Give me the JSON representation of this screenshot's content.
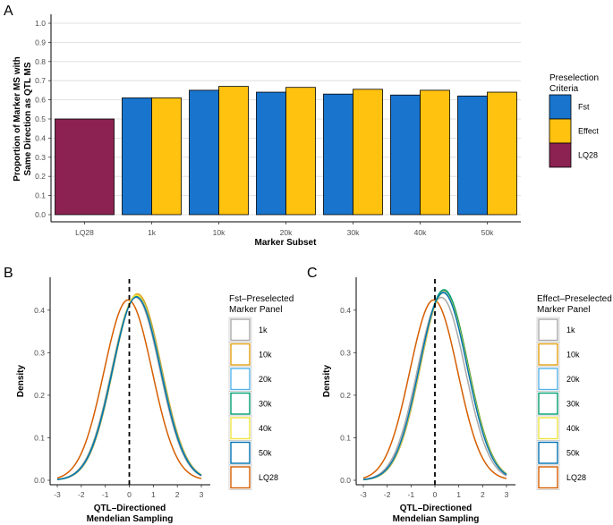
{
  "chart_data": [
    {
      "panel": "A",
      "type": "bar",
      "xlabel": "Marker Subset",
      "ylabel_line1": "Proportion of Marker MS with",
      "ylabel_line2": "Same Direction as QTL MS",
      "ylim": [
        0,
        1.0
      ],
      "yticks": [
        "0.0",
        "0.1",
        "0.2",
        "0.3",
        "0.4",
        "0.5",
        "0.6",
        "0.7",
        "0.8",
        "0.9",
        "1.0"
      ],
      "categories": [
        "LQ28",
        "1k",
        "10k",
        "20k",
        "30k",
        "40k",
        "50k"
      ],
      "series": [
        {
          "name": "Fst",
          "color": "#1874cd",
          "values": [
            null,
            0.61,
            0.65,
            0.64,
            0.63,
            0.625,
            0.62
          ]
        },
        {
          "name": "Effect",
          "color": "#ffc20e",
          "values": [
            null,
            0.61,
            0.67,
            0.665,
            0.655,
            0.65,
            0.64
          ]
        },
        {
          "name": "LQ28",
          "color": "#8b2252",
          "values": [
            0.5,
            null,
            null,
            null,
            null,
            null,
            null
          ]
        }
      ],
      "legend_title_line1": "Preselection",
      "legend_title_line2": "Criteria",
      "legend_labels": [
        "Fst",
        "Effect",
        "LQ28"
      ]
    },
    {
      "panel": "B",
      "type": "line",
      "xlabel_line1": "QTL–Directioned",
      "xlabel_line2": "Mendelian Sampling",
      "ylabel": "Density",
      "xlim": [
        -3,
        3
      ],
      "ylim": [
        0,
        0.45
      ],
      "xticks": [
        "-3",
        "-2",
        "-1",
        "0",
        "1",
        "2",
        "3"
      ],
      "yticks": [
        "0.0",
        "0.1",
        "0.2",
        "0.3",
        "0.4"
      ],
      "vline_x": 0,
      "legend_title_line1": "Fst–Preselected",
      "legend_title_line2": "Marker Panel",
      "series": [
        {
          "name": "1k",
          "color": "#a8a8a8",
          "mean": 0.27,
          "peak": 0.43
        },
        {
          "name": "10k",
          "color": "#e0a010",
          "mean": 0.34,
          "peak": 0.438
        },
        {
          "name": "20k",
          "color": "#56b4e9",
          "mean": 0.32,
          "peak": 0.434
        },
        {
          "name": "30k",
          "color": "#009e73",
          "mean": 0.31,
          "peak": 0.433
        },
        {
          "name": "40k",
          "color": "#f0e442",
          "mean": 0.3,
          "peak": 0.435
        },
        {
          "name": "50k",
          "color": "#0072b2",
          "mean": 0.3,
          "peak": 0.431
        },
        {
          "name": "LQ28",
          "color": "#d55e00",
          "mean": -0.05,
          "peak": 0.424
        }
      ]
    },
    {
      "panel": "C",
      "type": "line",
      "xlabel_line1": "QTL–Directioned",
      "xlabel_line2": "Mendelian Sampling",
      "ylabel": "Density",
      "xlim": [
        -3,
        3
      ],
      "ylim": [
        0,
        0.45
      ],
      "xticks": [
        "-3",
        "-2",
        "-1",
        "0",
        "1",
        "2",
        "3"
      ],
      "yticks": [
        "0.0",
        "0.1",
        "0.2",
        "0.3",
        "0.4"
      ],
      "vline_x": 0,
      "legend_title_line1": "Effect–Preselected",
      "legend_title_line2": "Marker Panel",
      "series": [
        {
          "name": "1k",
          "color": "#a8a8a8",
          "mean": 0.27,
          "peak": 0.43
        },
        {
          "name": "10k",
          "color": "#e0a010",
          "mean": 0.4,
          "peak": 0.445
        },
        {
          "name": "20k",
          "color": "#56b4e9",
          "mean": 0.38,
          "peak": 0.443
        },
        {
          "name": "30k",
          "color": "#009e73",
          "mean": 0.38,
          "peak": 0.448
        },
        {
          "name": "40k",
          "color": "#f0e442",
          "mean": 0.37,
          "peak": 0.441
        },
        {
          "name": "50k",
          "color": "#0072b2",
          "mean": 0.35,
          "peak": 0.441
        },
        {
          "name": "LQ28",
          "color": "#d55e00",
          "mean": -0.05,
          "peak": 0.424
        }
      ]
    }
  ]
}
